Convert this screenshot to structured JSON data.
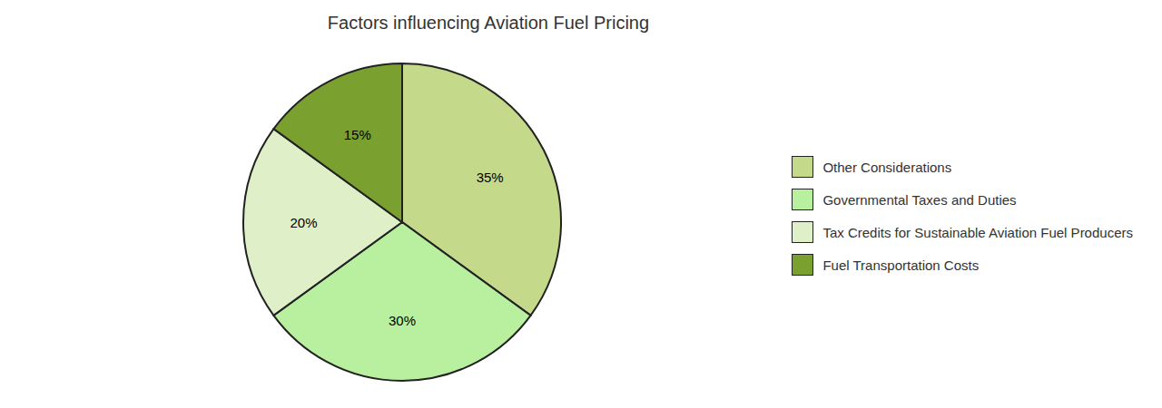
{
  "chart_data": {
    "type": "pie",
    "title": "Factors influencing Aviation Fuel Pricing",
    "categories": [
      "Other Considerations",
      "Governmental Taxes and Duties",
      "Tax Credits for Sustainable Aviation Fuel Producers",
      "Fuel Transportation Costs"
    ],
    "values": [
      35,
      30,
      20,
      15
    ],
    "value_labels": [
      "35%",
      "30%",
      "20%",
      "15%"
    ],
    "colors": [
      "#c5d98a",
      "#b8f0a0",
      "#dff0c8",
      "#7aa030"
    ],
    "data_labels": true,
    "legend": "right"
  }
}
